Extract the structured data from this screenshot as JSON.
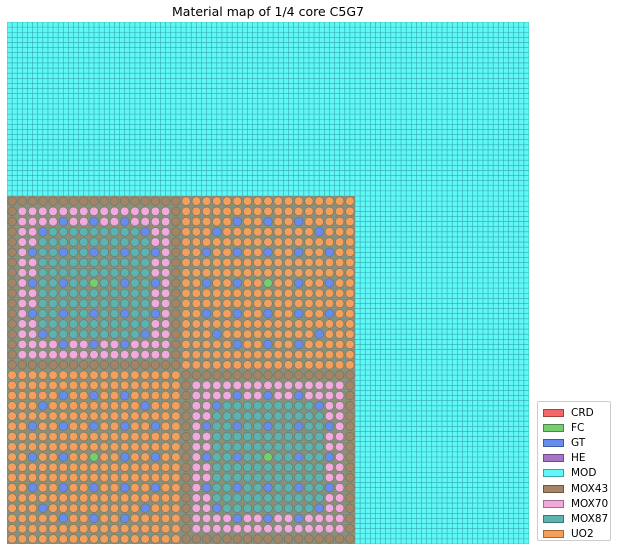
{
  "title": "Material map of 1/4 core C5G7",
  "materials": [
    {
      "name": "CRD",
      "color": "#f56767"
    },
    {
      "name": "FC",
      "color": "#76cf6f"
    },
    {
      "name": "GT",
      "color": "#668cf0"
    },
    {
      "name": "HE",
      "color": "#a874c9"
    },
    {
      "name": "MOD",
      "color": "#5ff7f7"
    },
    {
      "name": "MOX43",
      "color": "#a38566"
    },
    {
      "name": "MOX70",
      "color": "#f2a9dc"
    },
    {
      "name": "MOX87",
      "color": "#5cb4b0"
    },
    {
      "name": "UO2",
      "color": "#f59f5c"
    }
  ]
}
